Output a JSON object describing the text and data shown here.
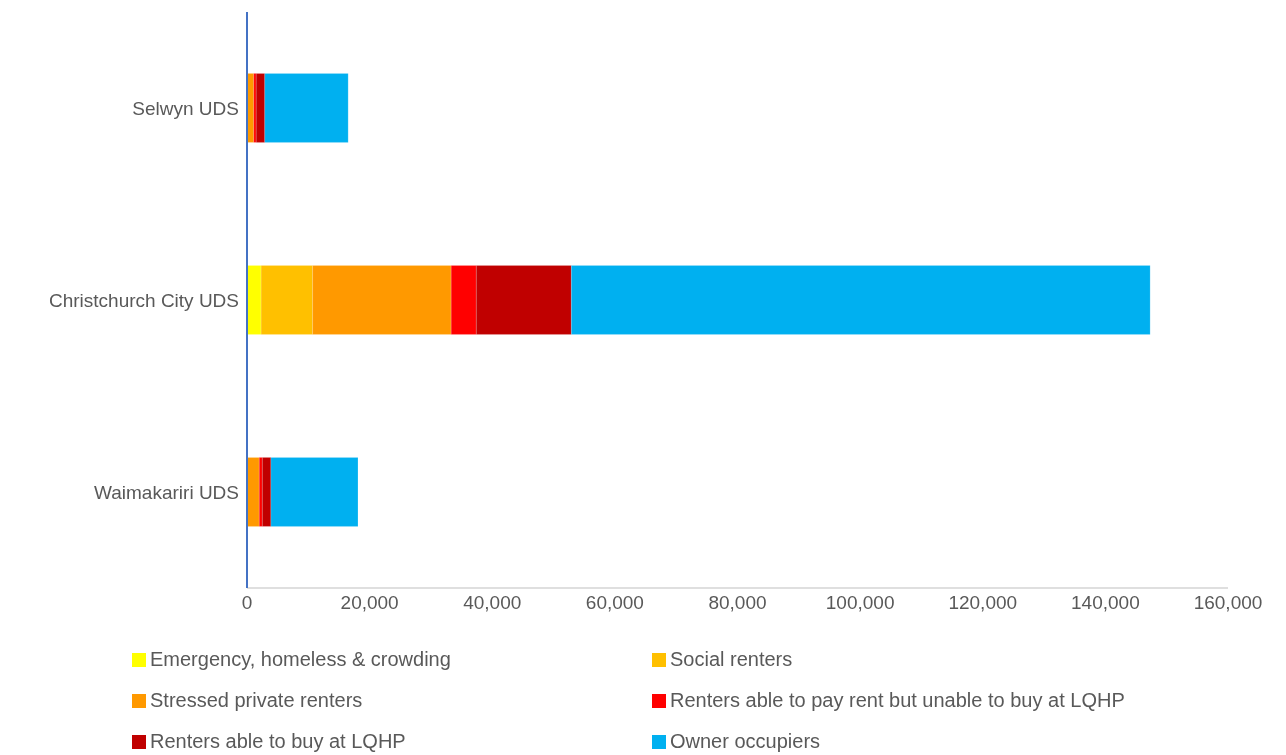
{
  "chart_data": {
    "type": "bar",
    "orientation": "horizontal",
    "stacked": true,
    "categories": [
      "Selwyn UDS",
      "Christchurch City UDS",
      "Waimakariri UDS"
    ],
    "series": [
      {
        "name": "Emergency, homeless & crowding",
        "color": "#ffff00",
        "values": [
          0,
          2300,
          0
        ]
      },
      {
        "name": "Social renters",
        "color": "#ffc000",
        "values": [
          0,
          8400,
          0
        ]
      },
      {
        "name": "Stressed private renters",
        "color": "#ff9900",
        "values": [
          1100,
          22600,
          2000
        ]
      },
      {
        "name": "Renters able to pay rent but unable to buy at LQHP",
        "color": "#ff0000",
        "values": [
          400,
          4100,
          500
        ]
      },
      {
        "name": "Renters able to buy at LQHP",
        "color": "#c00000",
        "values": [
          1400,
          15500,
          1400
        ]
      },
      {
        "name": "Owner occupiers",
        "color": "#00b0f0",
        "values": [
          13600,
          94400,
          14200
        ]
      }
    ],
    "xlim": [
      0,
      160000
    ],
    "xticks": [
      0,
      {
        "value": 20000,
        "label": "20,000"
      },
      {
        "value": 40000,
        "label": "40,000"
      },
      {
        "value": 60000,
        "label": "60,000"
      },
      {
        "value": 80000,
        "label": "80,000"
      },
      {
        "value": 100000,
        "label": "100,000"
      },
      {
        "value": 120000,
        "label": "120,000"
      },
      {
        "value": 140000,
        "label": "140,000"
      },
      {
        "value": 160000,
        "label": "160,000"
      }
    ],
    "grid": false,
    "legend": "bottom"
  }
}
